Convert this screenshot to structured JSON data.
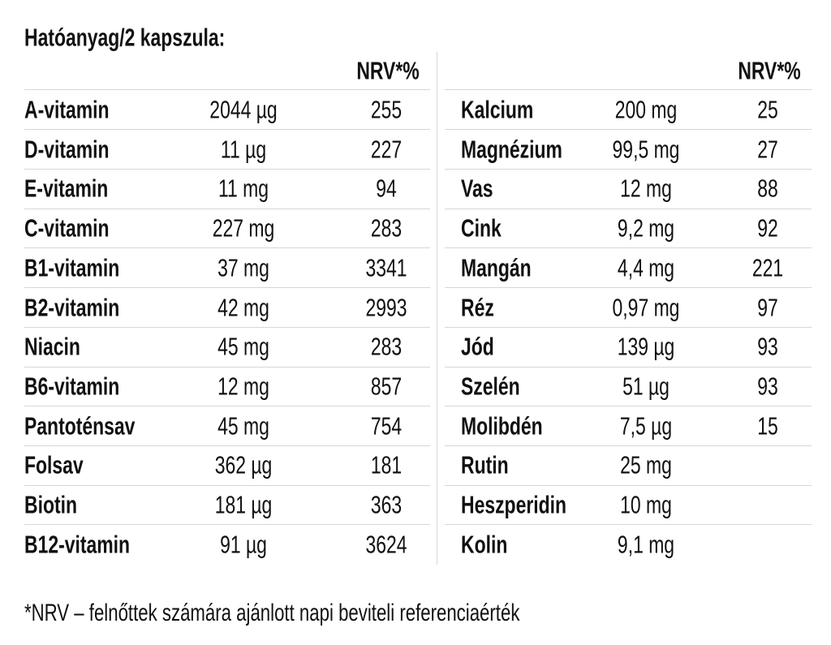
{
  "title": "Hatóanyag/2 kapszula:",
  "tables": [
    {
      "header": "NRV*%",
      "rows": [
        [
          "A-vitamin",
          "2044 µg",
          "255"
        ],
        [
          "D-vitamin",
          "11 µg",
          "227"
        ],
        [
          "E-vitamin",
          "11 mg",
          "94"
        ],
        [
          "C-vitamin",
          "227 mg",
          "283"
        ],
        [
          "B1-vitamin",
          "37 mg",
          "3341"
        ],
        [
          "B2-vitamin",
          "42 mg",
          "2993"
        ],
        [
          "Niacin",
          "45 mg",
          "283"
        ],
        [
          "B6-vitamin",
          "12 mg",
          "857"
        ],
        [
          "Pantoténsav",
          "45 mg",
          "754"
        ],
        [
          "Folsav",
          "362 µg",
          "181"
        ],
        [
          "Biotin",
          "181 µg",
          "363"
        ],
        [
          "B12-vitamin",
          "91 µg",
          "3624"
        ]
      ]
    },
    {
      "header": "NRV*%",
      "rows": [
        [
          "Kalcium",
          "200 mg",
          "25"
        ],
        [
          "Magnézium",
          "99,5 mg",
          "27"
        ],
        [
          "Vas",
          "12 mg",
          "88"
        ],
        [
          "Cink",
          "9,2 mg",
          "92"
        ],
        [
          "Mangán",
          "4,4 mg",
          "221"
        ],
        [
          "Réz",
          "0,97 mg",
          "97"
        ],
        [
          "Jód",
          "139 µg",
          "93"
        ],
        [
          "Szelén",
          "51 µg",
          "93"
        ],
        [
          "Molibdén",
          "7,5 µg",
          "15"
        ],
        [
          "Rutin",
          "25 mg"
        ],
        [
          "Heszperidin",
          "10 mg"
        ],
        [
          "Kolin",
          "9,1 mg"
        ]
      ]
    }
  ],
  "footnote": "*NRV – felnőttek számára ajánlott napi beviteli referenciaérték"
}
